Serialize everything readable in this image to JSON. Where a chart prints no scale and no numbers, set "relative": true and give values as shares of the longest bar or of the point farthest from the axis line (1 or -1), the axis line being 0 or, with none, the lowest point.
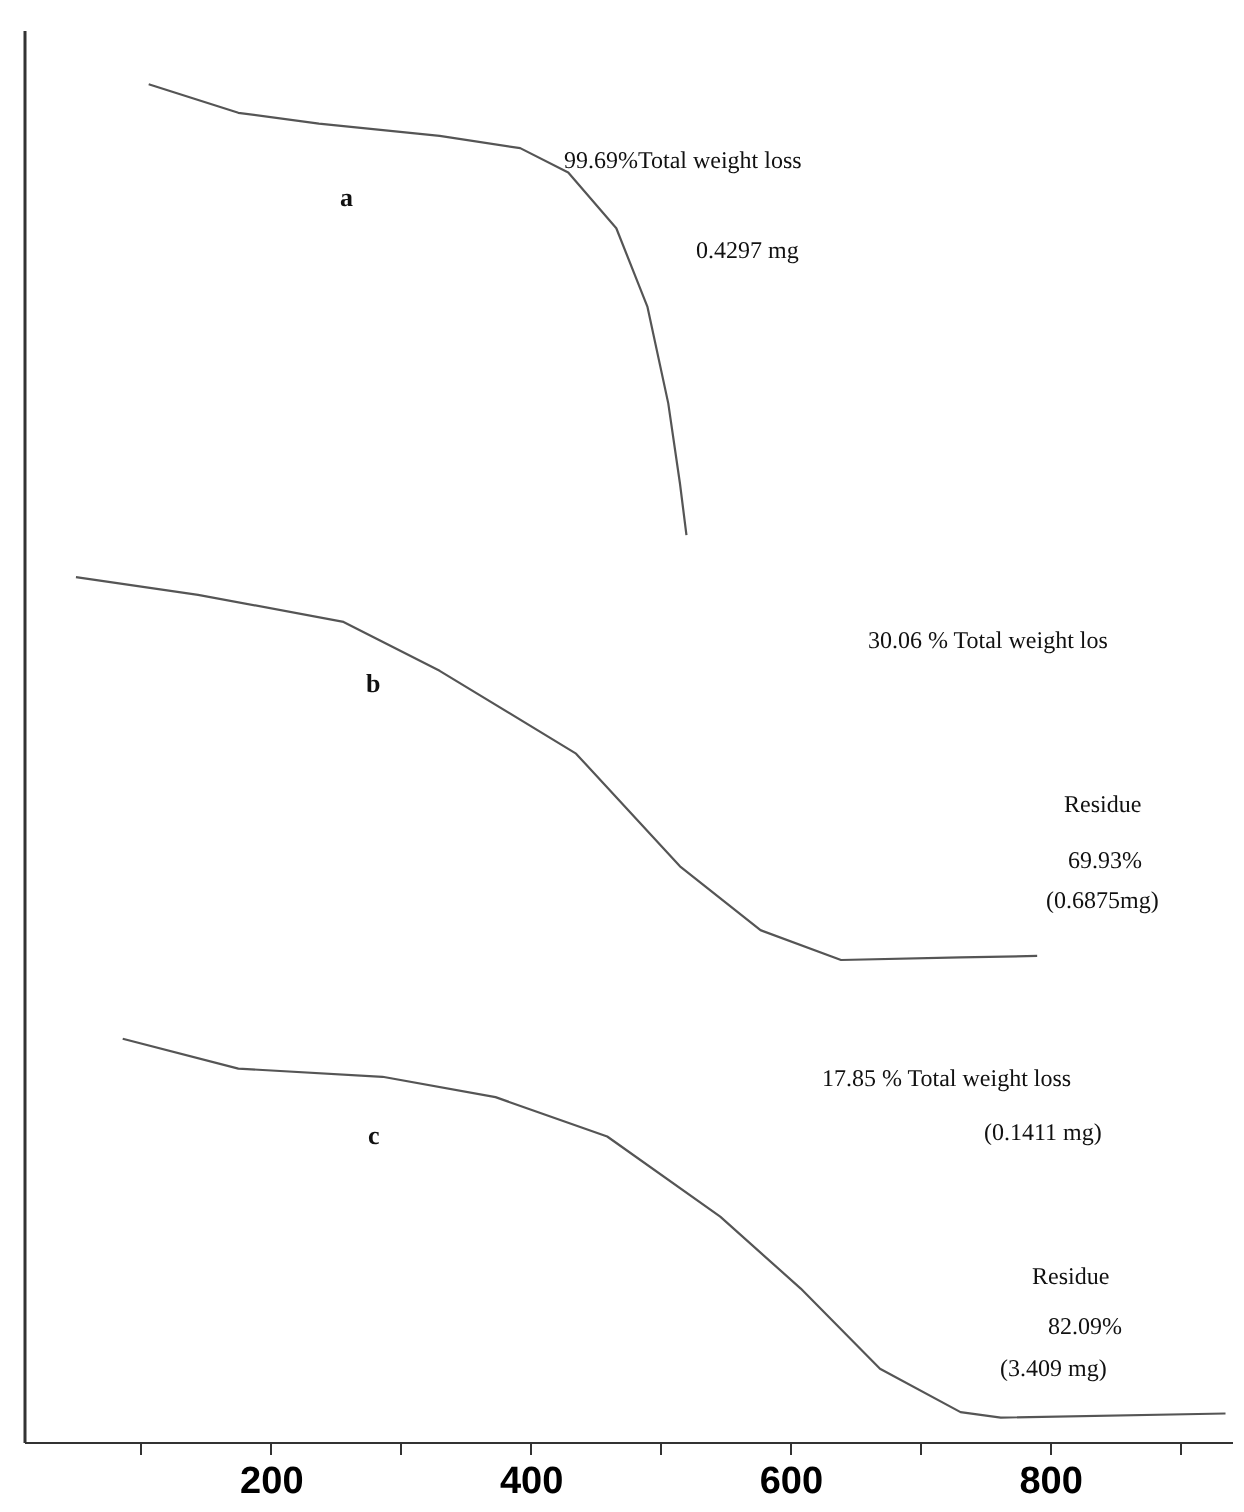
{
  "chart_data": {
    "type": "line",
    "relative": true,
    "grid": false,
    "marker": "none",
    "line_style": "solid",
    "xlim": [
      10,
      940
    ],
    "xticks": [
      {
        "value": 100,
        "label": null
      },
      200,
      {
        "value": 300,
        "label": null
      },
      400,
      {
        "value": 500,
        "label": null
      },
      600,
      {
        "value": 700,
        "label": null
      },
      800,
      {
        "value": 900,
        "label": null
      }
    ],
    "series": [
      {
        "name": "a",
        "color": "#555555",
        "x": [
          106,
          175,
          237,
          330,
          392,
          429,
          466,
          490,
          506,
          515,
          520
        ],
        "values": [
          1.0,
          0.979,
          0.971,
          0.962,
          0.953,
          0.935,
          0.894,
          0.836,
          0.765,
          0.706,
          0.668
        ]
      },
      {
        "name": "b",
        "color": "#555555",
        "x": [
          50,
          144,
          256,
          330,
          435,
          515,
          577,
          639,
          731,
          790
        ],
        "values": [
          0.637,
          0.624,
          0.604,
          0.568,
          0.507,
          0.424,
          0.377,
          0.355,
          0.357,
          0.358
        ]
      },
      {
        "name": "c",
        "color": "#555555",
        "x": [
          86,
          175,
          286,
          373,
          459,
          546,
          608,
          669,
          731,
          762,
          935
        ],
        "values": [
          0.297,
          0.275,
          0.269,
          0.254,
          0.225,
          0.166,
          0.113,
          0.054,
          0.022,
          0.018,
          0.021
        ]
      }
    ],
    "annotations": [
      "99.69%Total weight loss",
      "0.4297 mg",
      "30.06 % Total weight los",
      "Residue",
      "69.93%",
      "(0.6875mg)",
      "17.85 % Total weight loss",
      "(0.1411 mg)",
      "Residue",
      "82.09%",
      "(3.409 mg)"
    ]
  }
}
